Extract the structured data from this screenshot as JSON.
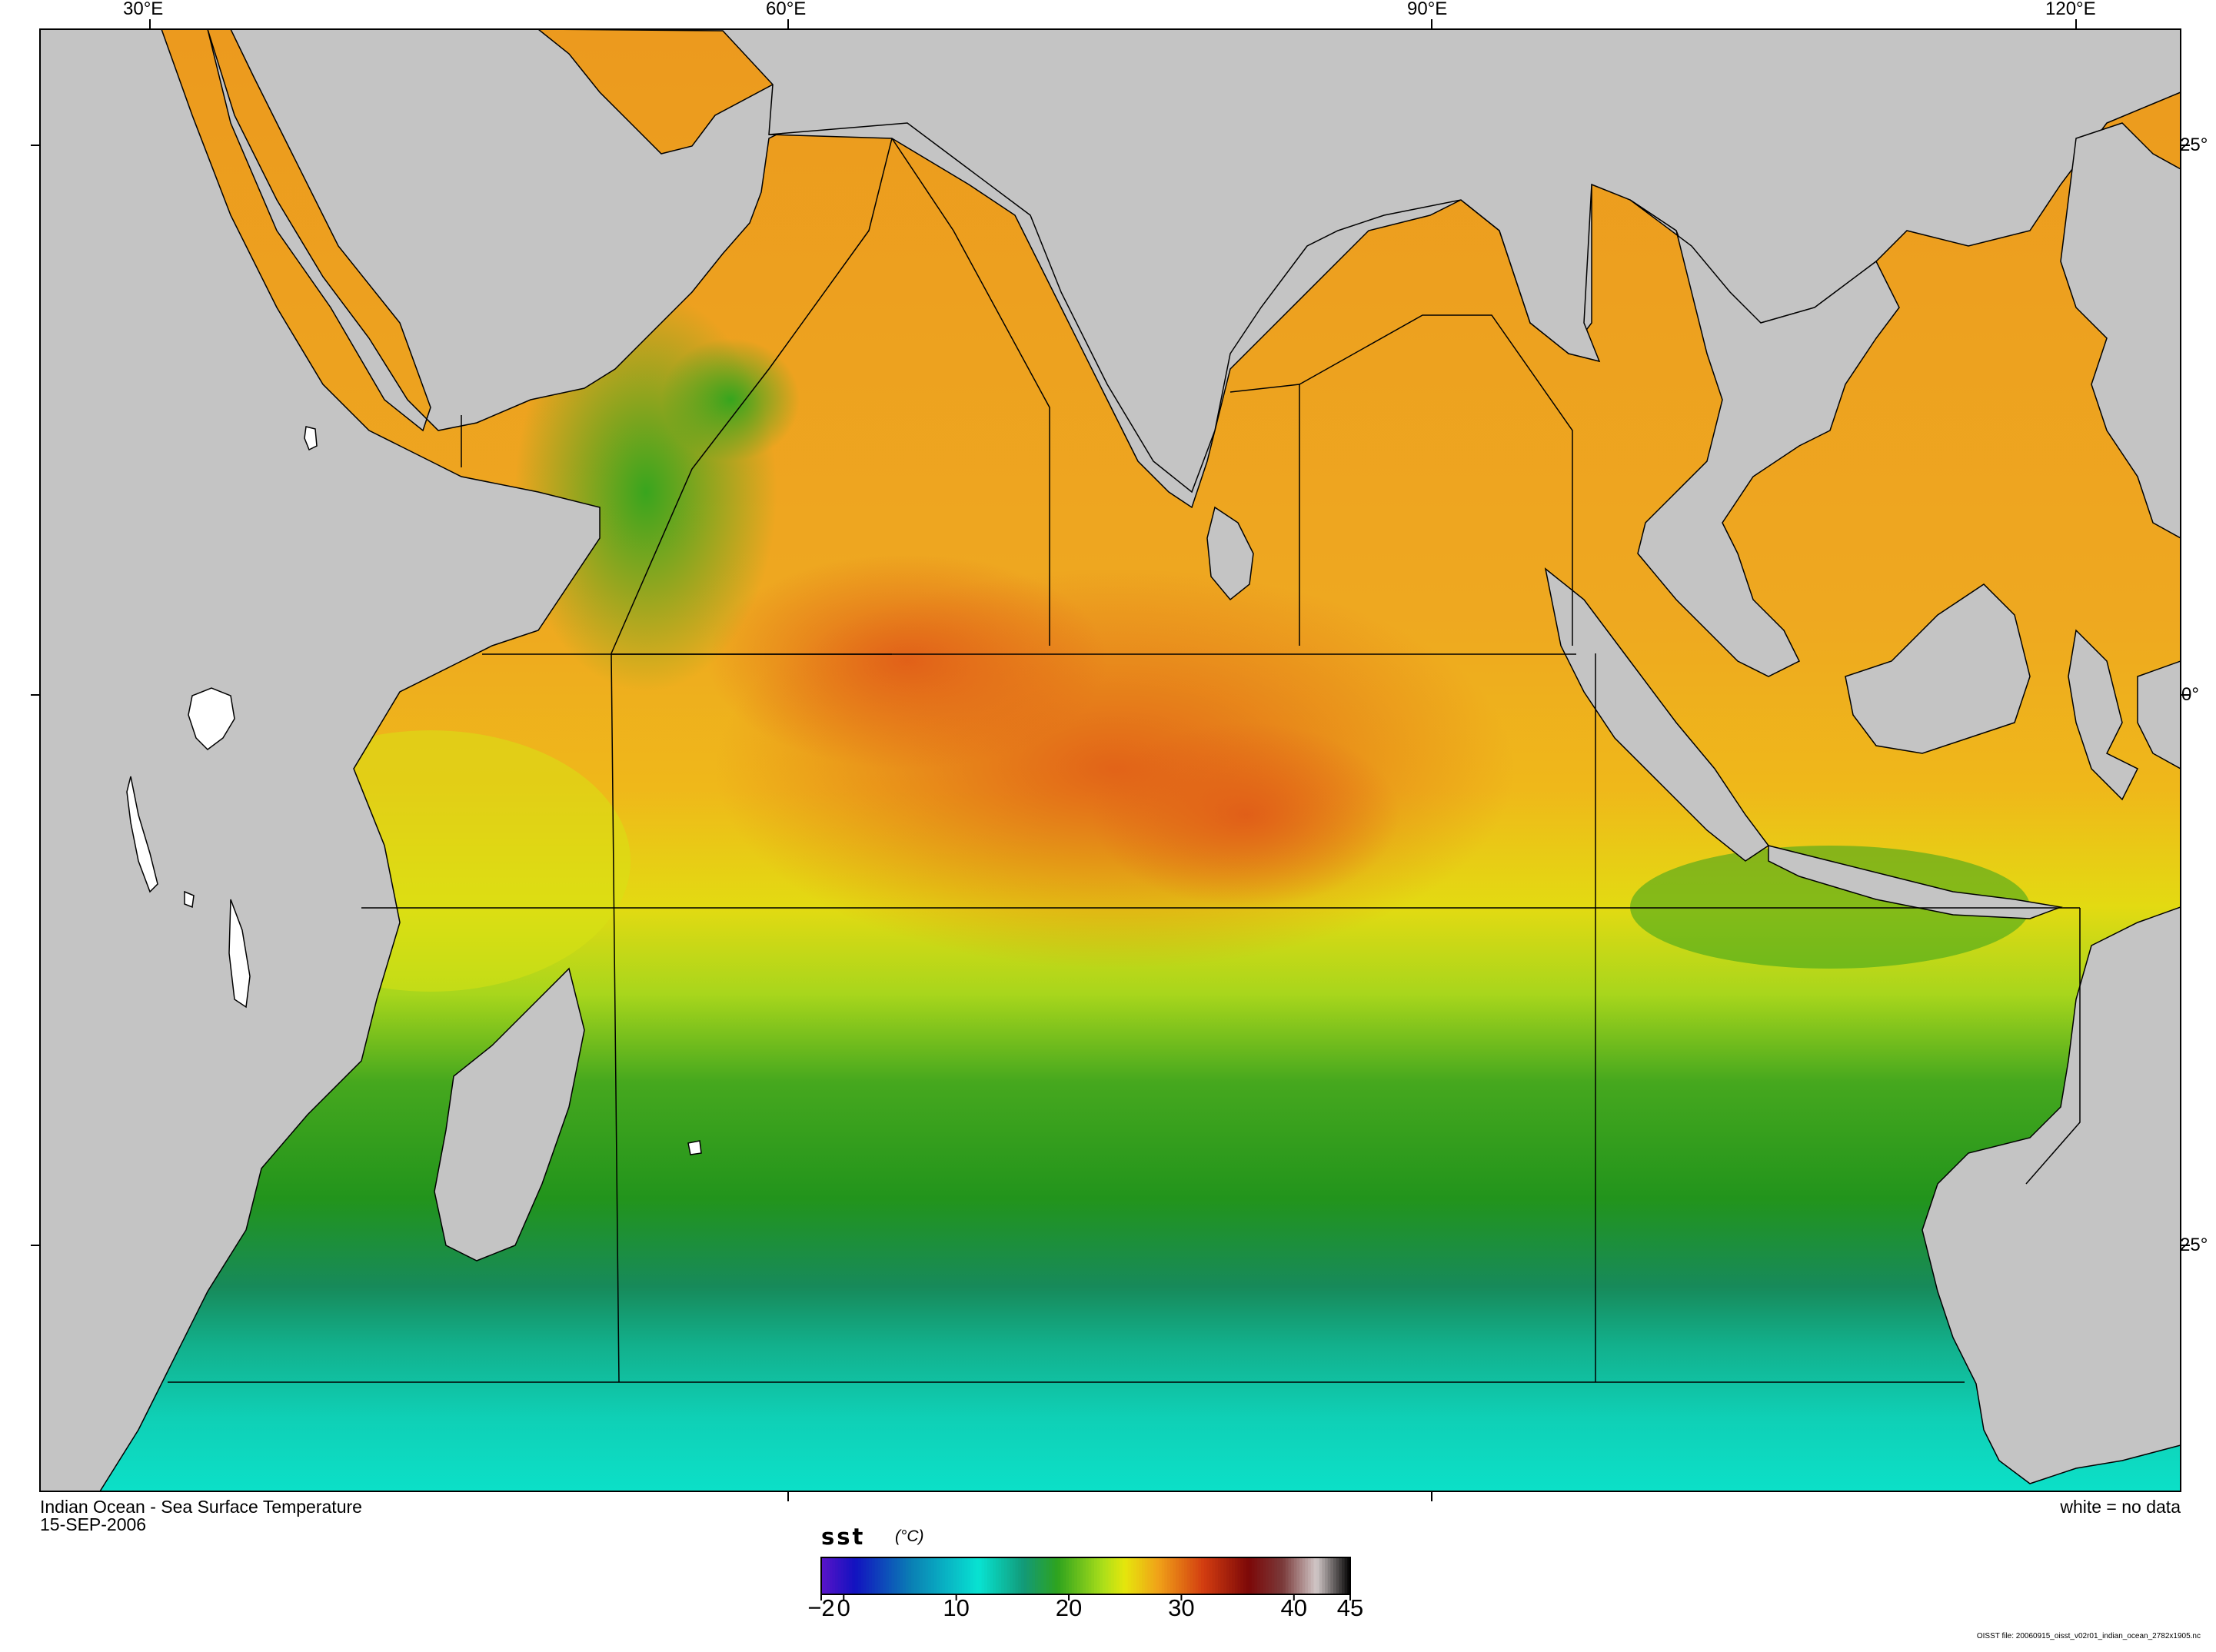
{
  "map": {
    "region": "Indian Ocean",
    "colors": {
      "land": "#c4c4c4",
      "no_data": "#ffffff",
      "coastline": "#000000",
      "frame": "#000000"
    },
    "longitude_labels": [
      "30°E",
      "60°E",
      "90°E",
      "120°E"
    ],
    "latitude_labels": [
      "25°",
      "0°",
      "25°"
    ]
  },
  "caption": {
    "title": "Indian Ocean - Sea Surface Temperature",
    "date": "15-SEP-2006",
    "legend_note": "white = no data",
    "file_note": "OISST file: 20060915_oisst_v02r01_indian_ocean_2782x1905.nc"
  },
  "colorbar": {
    "variable": "sst",
    "units": "(°C)",
    "min": -2,
    "max": 45,
    "ticks": [
      {
        "value": -2,
        "label": "−2"
      },
      {
        "value": 0,
        "label": "0"
      },
      {
        "value": 10,
        "label": "10"
      },
      {
        "value": 20,
        "label": "20"
      },
      {
        "value": 30,
        "label": "30"
      },
      {
        "value": 40,
        "label": "40"
      },
      {
        "value": 45,
        "label": "45"
      }
    ],
    "stops": [
      {
        "value": -2,
        "color": "#5a14c8"
      },
      {
        "value": 1,
        "color": "#1212c0"
      },
      {
        "value": 6,
        "color": "#0a7fb4"
      },
      {
        "value": 12,
        "color": "#08e3d2"
      },
      {
        "value": 16,
        "color": "#129a78"
      },
      {
        "value": 19,
        "color": "#2ea31e"
      },
      {
        "value": 23,
        "color": "#aade1a"
      },
      {
        "value": 25,
        "color": "#e6e60c"
      },
      {
        "value": 28,
        "color": "#f0a018"
      },
      {
        "value": 32,
        "color": "#d23c10"
      },
      {
        "value": 36,
        "color": "#7c0808"
      },
      {
        "value": 39,
        "color": "#7a3a3a"
      },
      {
        "value": 42,
        "color": "#d2c8c8"
      },
      {
        "value": 45,
        "color": "#000000"
      }
    ]
  }
}
